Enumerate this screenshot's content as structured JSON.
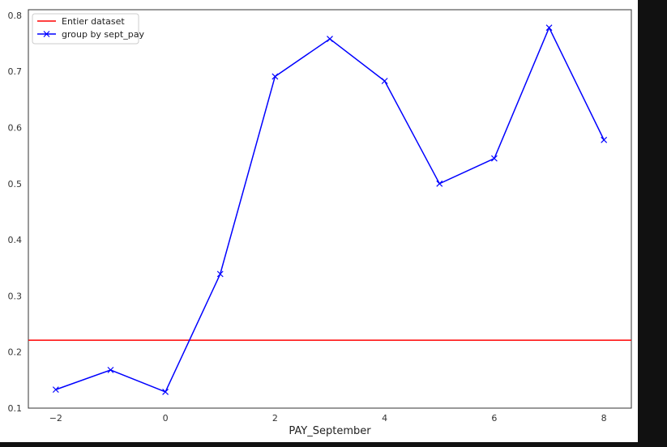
{
  "chart_data": {
    "type": "line",
    "title": "",
    "xlabel": "PAY_September",
    "ylabel": "",
    "xlim": [
      -2.5,
      8.5
    ],
    "ylim": [
      0.1,
      0.81
    ],
    "x_ticks": [
      -2,
      0,
      2,
      4,
      6,
      8
    ],
    "x_tick_labels": [
      "−2",
      "0",
      "2",
      "4",
      "6",
      "8"
    ],
    "y_ticks": [
      0.1,
      0.2,
      0.3,
      0.4,
      0.5,
      0.6,
      0.7,
      0.8
    ],
    "y_tick_labels": [
      "0.1",
      "0.2",
      "0.3",
      "0.4",
      "0.5",
      "0.6",
      "0.7",
      "0.8"
    ],
    "grid": false,
    "legend_position": "top-left",
    "reference_line": {
      "name": "Entier dataset",
      "y": 0.221,
      "color": "#ff0000"
    },
    "series": [
      {
        "name": "group by sept_pay",
        "color": "#0000ff",
        "marker": "x",
        "x": [
          -2,
          -1,
          0,
          1,
          2,
          3,
          4,
          5,
          6,
          7,
          8
        ],
        "values": [
          0.133,
          0.168,
          0.129,
          0.339,
          0.691,
          0.758,
          0.683,
          0.5,
          0.545,
          0.778,
          0.578
        ]
      }
    ]
  }
}
